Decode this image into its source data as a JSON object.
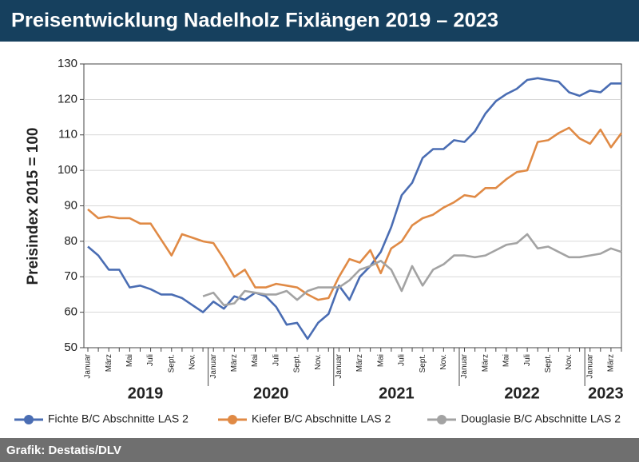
{
  "chart_data": {
    "type": "line",
    "title": "Preisentwicklung Nadelholz Fixlängen 2019 – 2023",
    "y_label": "Preisindex 2015 = 100",
    "source": "Grafik: Destatis/DLV",
    "categories": [
      "Januar",
      null,
      "März",
      null,
      "Mai",
      null,
      "Juli",
      null,
      "Sept.",
      null,
      "Nov.",
      null,
      "Januar",
      null,
      "März",
      null,
      "Mai",
      null,
      "Juli",
      null,
      "Sept.",
      null,
      "Nov.",
      null,
      "Januar",
      null,
      "März",
      null,
      "Mai",
      null,
      "Juli",
      null,
      "Sept.",
      null,
      "Nov.",
      null,
      "Januar",
      null,
      "März",
      null,
      "Mai",
      null,
      "Juli",
      null,
      "Sept.",
      null,
      "Nov.",
      null,
      "Januar",
      null,
      "März",
      null
    ],
    "year_labels": [
      "2019",
      "2020",
      "2021",
      "2022",
      "2023"
    ],
    "ylim": [
      50,
      130
    ],
    "yticks": [
      50,
      60,
      70,
      80,
      90,
      100,
      110,
      120,
      130
    ],
    "series": [
      {
        "name": "Fichte B/C Abschnitte LAS 2",
        "color": "#4a6db3",
        "values": [
          78.5,
          76,
          72,
          72,
          67,
          67.5,
          66.5,
          65,
          65,
          64,
          62,
          60,
          63,
          61,
          64.5,
          63.5,
          65.5,
          64.5,
          61.5,
          56.5,
          57,
          52.5,
          57,
          59.5,
          67.5,
          63.5,
          70,
          73,
          77,
          84,
          93,
          96.5,
          103.5,
          106,
          106,
          108.5,
          108,
          111,
          116,
          119.5,
          121.5,
          123,
          125.5,
          126,
          125.5,
          125,
          122,
          121,
          122.5,
          122,
          124.5,
          124.5
        ]
      },
      {
        "name": "Kiefer B/C Abschnitte LAS 2",
        "color": "#e08a45",
        "values": [
          89,
          86.5,
          87,
          86.5,
          86.5,
          85,
          85,
          80.5,
          76,
          82,
          81,
          80,
          79.5,
          75,
          70,
          72,
          67,
          67,
          68,
          67.5,
          67,
          65,
          63.5,
          64,
          70,
          75,
          74,
          77.5,
          71,
          78,
          80,
          84.5,
          86.5,
          87.5,
          89.5,
          91,
          93,
          92.5,
          95,
          95,
          97.5,
          99.5,
          100,
          108,
          108.5,
          110.5,
          112,
          109,
          107.5,
          111.5,
          106.5,
          110.5
        ]
      },
      {
        "name": "Douglasie B/C Abschnitte LAS 2",
        "color": "#a3a3a3",
        "values": [
          null,
          null,
          null,
          null,
          null,
          null,
          null,
          null,
          null,
          null,
          null,
          64.5,
          65.5,
          62,
          62.5,
          66,
          65.5,
          65,
          65,
          66,
          63.5,
          66,
          67,
          67,
          67,
          69,
          72,
          73,
          74.5,
          72,
          66,
          73,
          67.5,
          72,
          73.5,
          76,
          76,
          75.5,
          76,
          77.5,
          79,
          79.5,
          82,
          78,
          78.5,
          77,
          75.5,
          75.5,
          76,
          76.5,
          78,
          77
        ]
      }
    ]
  }
}
